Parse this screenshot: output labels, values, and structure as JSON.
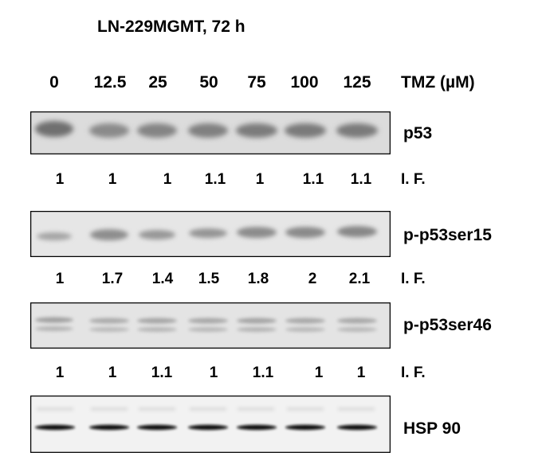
{
  "title": "LN-229MGMT, 72 h",
  "treatment": {
    "label": "TMZ (µM)",
    "doses": [
      "0",
      "12.5",
      "25",
      "50",
      "75",
      "100",
      "125"
    ]
  },
  "if_label": "I. F.",
  "blots": [
    {
      "name": "p53",
      "if_values": [
        "1",
        "1",
        "1",
        "1.1",
        "1",
        "1.1",
        "1.1"
      ]
    },
    {
      "name": "p-p53ser15",
      "if_values": [
        "1",
        "1.7",
        "1.4",
        "1.5",
        "1.8",
        "2",
        "2.1"
      ]
    },
    {
      "name": "p-p53ser46",
      "if_values": [
        "1",
        "1",
        "1.1",
        "1",
        "1.1",
        "1",
        "1"
      ]
    },
    {
      "name": "HSP 90"
    }
  ]
}
